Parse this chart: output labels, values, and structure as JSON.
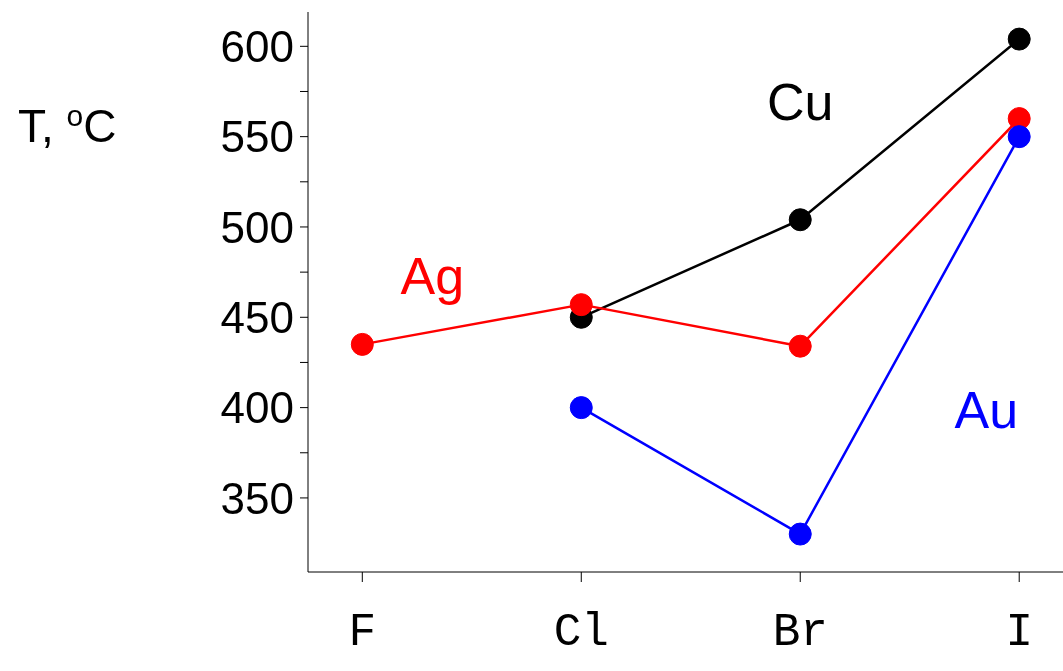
{
  "chart_data": {
    "type": "line",
    "ylabel": "T, $^{o}$C",
    "categories": [
      "F",
      "Cl",
      "Br",
      "I"
    ],
    "series": [
      {
        "name": "Cu",
        "color": "#000000",
        "values": [
          null,
          450,
          504,
          604
        ]
      },
      {
        "name": "Ag",
        "color": "#ff0000",
        "values": [
          435,
          457,
          434,
          560
        ]
      },
      {
        "name": "Au",
        "color": "#0000ff",
        "values": [
          null,
          400,
          330,
          550
        ]
      }
    ],
    "ylim": [
      309,
      619
    ],
    "yticks": [
      350,
      {
        "value": 375,
        "label": null
      },
      400,
      {
        "value": 425,
        "label": null
      },
      450,
      {
        "value": 475,
        "label": null
      },
      500,
      {
        "value": 525,
        "label": null
      },
      550,
      {
        "value": 575,
        "label": null
      },
      600
    ],
    "grid": false,
    "marker": "circle",
    "line_style": "solid"
  }
}
